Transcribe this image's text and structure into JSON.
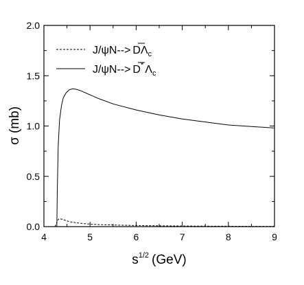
{
  "chart_data": {
    "type": "line",
    "title": "",
    "xlabel": "s",
    "xlabel_superscript": "1/2",
    "xlabel_unit": "(GeV)",
    "ylabel": "σ (mb)",
    "xlim": [
      4,
      9
    ],
    "ylim": [
      0.0,
      2.0
    ],
    "x_ticks": [
      "4",
      "5",
      "6",
      "7",
      "8",
      "9"
    ],
    "y_ticks": [
      "0.0",
      "0.5",
      "1.0",
      "1.5",
      "2.0"
    ],
    "grid": false,
    "legend_position": "top-left",
    "series": [
      {
        "name": "J/ψN-->D̄Λc",
        "legend_main": "J/ψN-->",
        "legend_particle": "D",
        "legend_particle_star": "",
        "legend_baryon": "Λ",
        "legend_baryon_sub": "c",
        "style": "dashed",
        "x": [
          4.24,
          4.27,
          4.3,
          4.33,
          4.38,
          4.45,
          4.55,
          4.7,
          4.9,
          5.2,
          5.6,
          6.0,
          6.5,
          7.0,
          7.5,
          8.0,
          8.5,
          9.0
        ],
        "y": [
          0.0,
          0.03,
          0.065,
          0.078,
          0.075,
          0.065,
          0.05,
          0.038,
          0.028,
          0.02,
          0.015,
          0.011,
          0.008,
          0.006,
          0.005,
          0.004,
          0.003,
          0.003
        ]
      },
      {
        "name": "J/ψN-->D̄*Λc",
        "legend_main": "J/ψN-->",
        "legend_particle": "D",
        "legend_particle_star": "*",
        "legend_baryon": "Λ",
        "legend_baryon_sub": "c",
        "style": "solid",
        "x": [
          4.28,
          4.29,
          4.31,
          4.34,
          4.38,
          4.42,
          4.48,
          4.55,
          4.62,
          4.7,
          4.8,
          4.95,
          5.2,
          5.5,
          6.0,
          6.5,
          7.0,
          7.5,
          8.0,
          8.5,
          9.0
        ],
        "y": [
          0.0,
          0.35,
          0.8,
          1.06,
          1.2,
          1.28,
          1.33,
          1.36,
          1.37,
          1.365,
          1.35,
          1.32,
          1.27,
          1.22,
          1.16,
          1.11,
          1.07,
          1.04,
          1.01,
          0.995,
          0.98
        ]
      }
    ]
  }
}
